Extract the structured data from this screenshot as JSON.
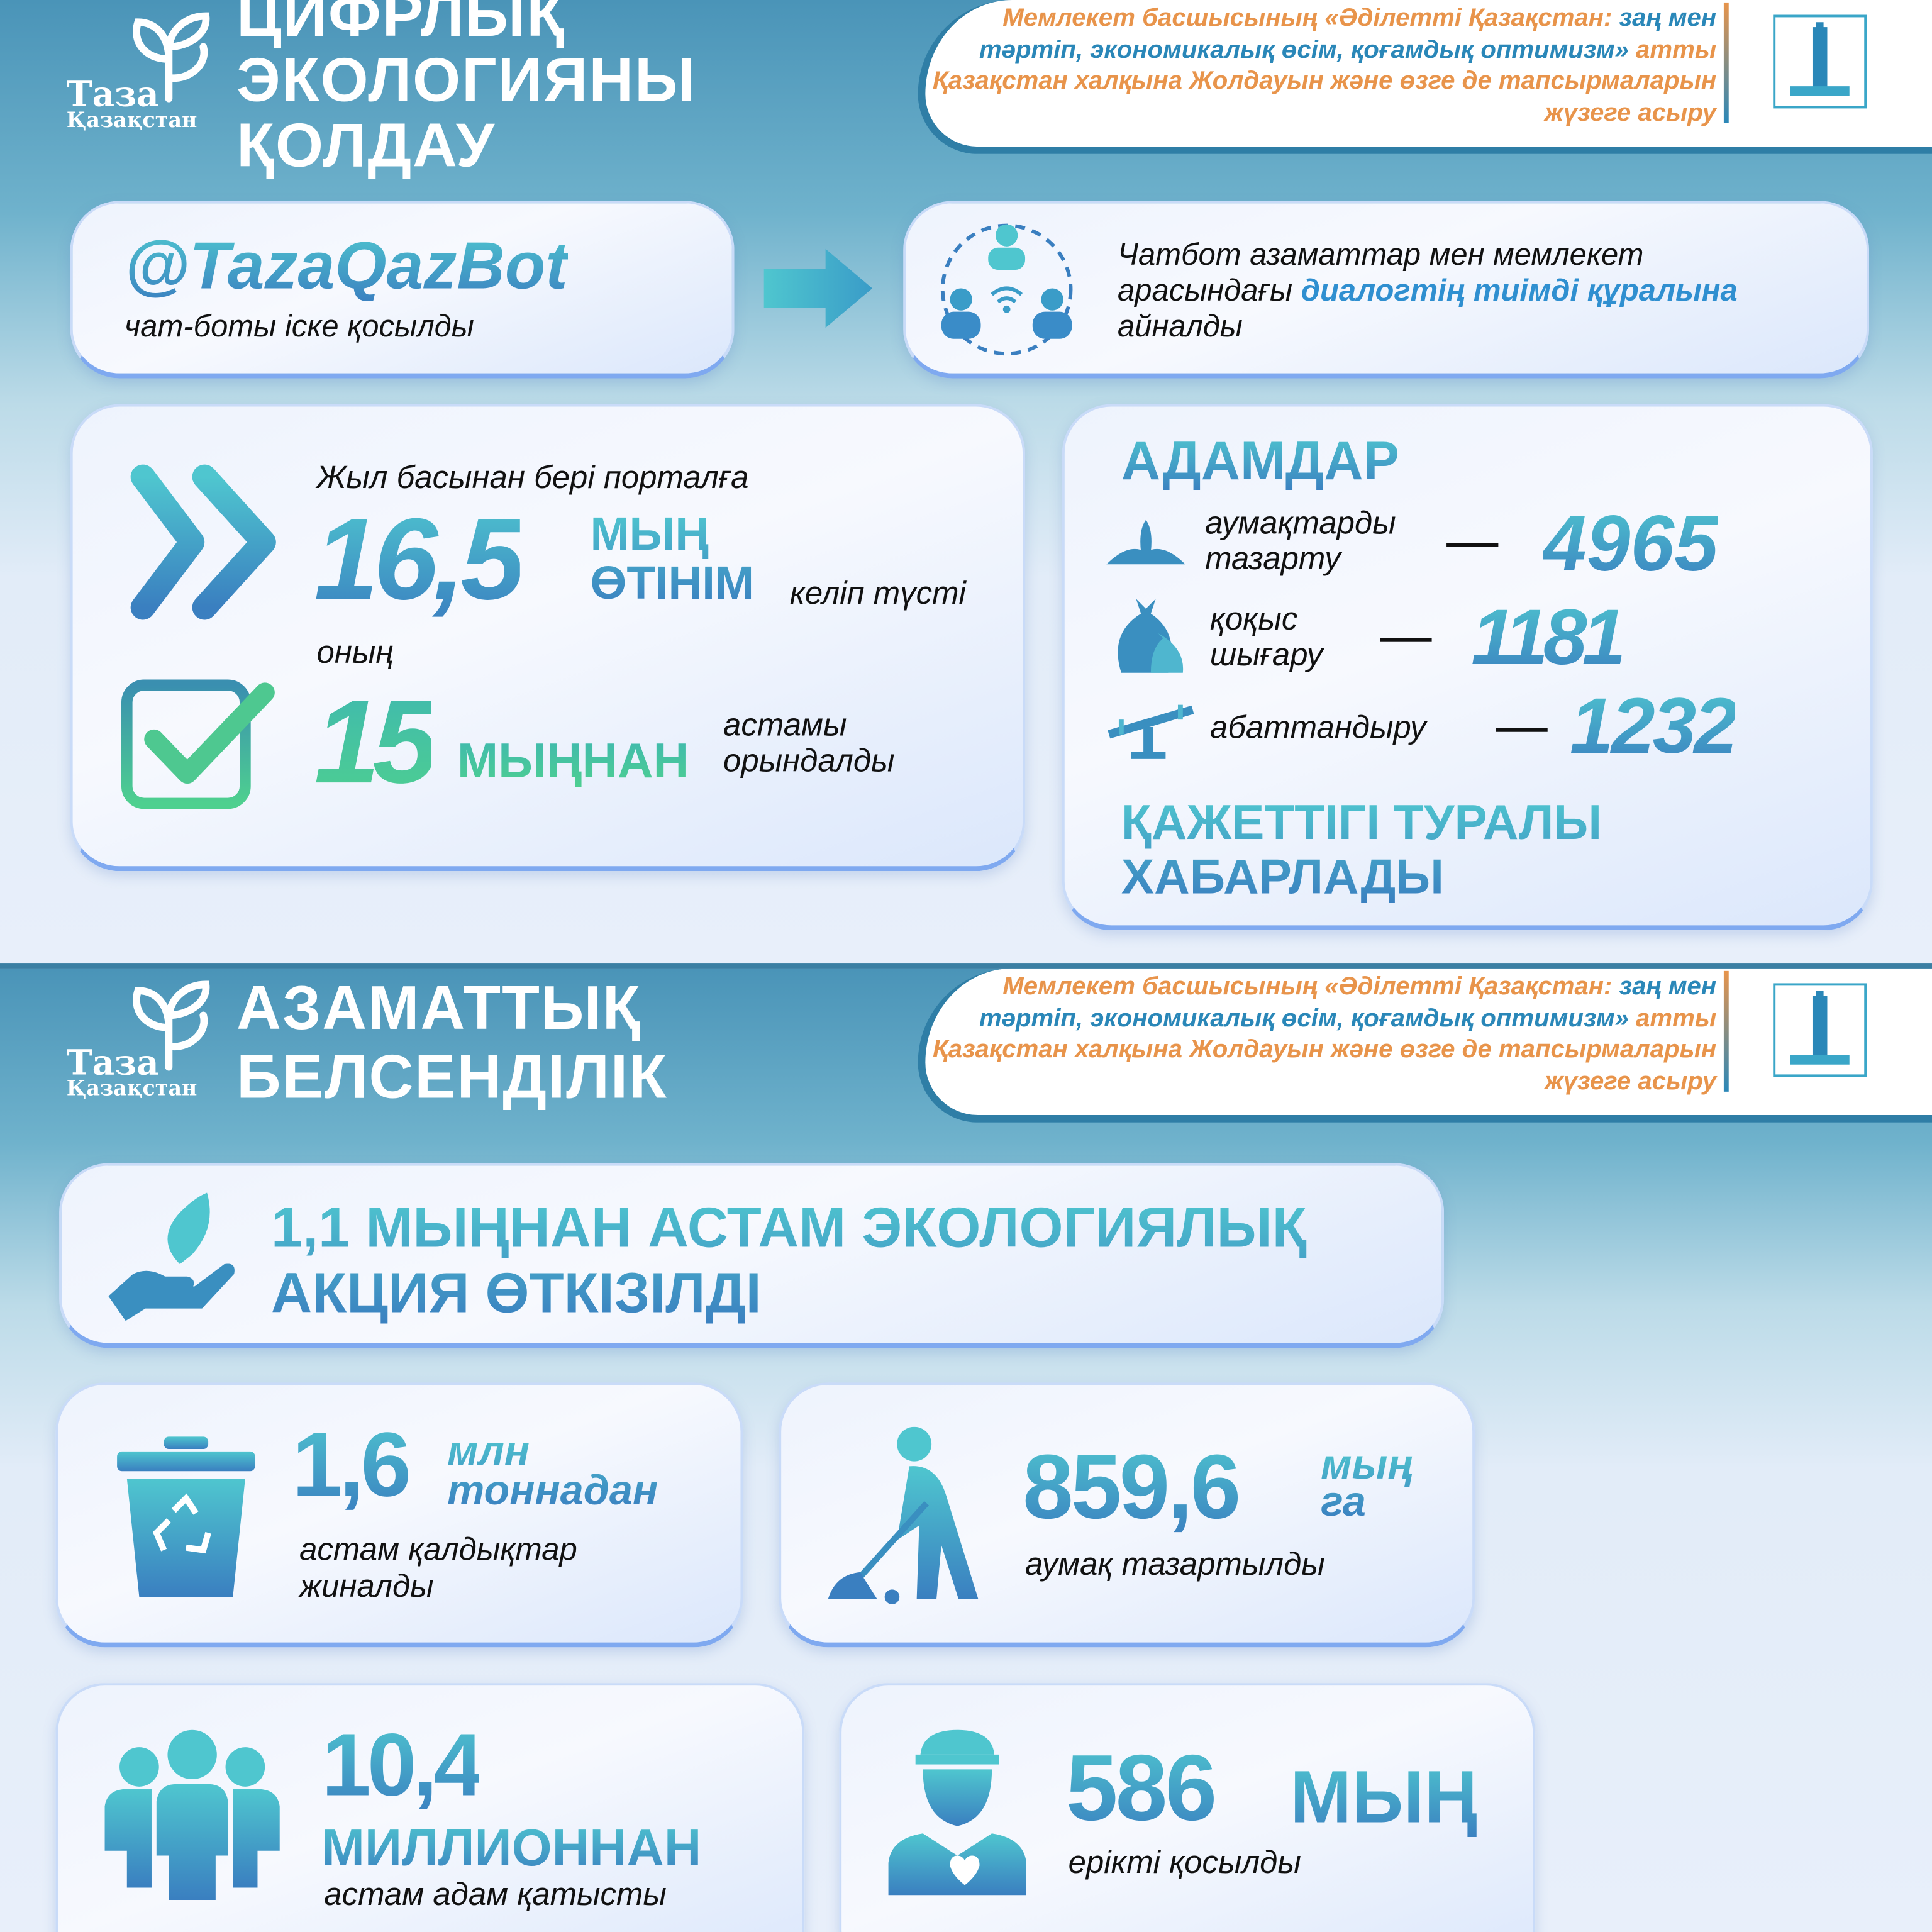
{
  "colors": {
    "accent_teal": "#4fc6cf",
    "accent_blue": "#3a7fc0",
    "orange": "#e8944b",
    "green": "#4ed08f",
    "header_bg": "#4a94b8"
  },
  "logo": {
    "line1": "Таза",
    "line2": "Қазақстан"
  },
  "banner": {
    "part1": "Мемлекет басшысының «Әділетті Қазақстан:",
    "part2": "заң мен тәртіп, экономикалық өсім, қоғамдық оптимизм»",
    "part3": "атты Қазақстан халқына Жолдауын және өзге де тапсырмаларын жүзеге асыру"
  },
  "section1": {
    "title_lines": [
      "ЦИФРЛЫҚ",
      "ЭКОЛОГИЯНЫ",
      "ҚОЛДАУ"
    ],
    "bot": {
      "handle": "@TazaQazBot",
      "caption": "чат-боты іске қосылды"
    },
    "chatbot": {
      "text1": "Чатбот азаматтар мен мемлекет арасындағы ",
      "highlight": "диалогтің тиімді құралына",
      "text2": " айналды"
    },
    "portal": {
      "intro": "Жыл басынан бері порталға",
      "number": "16,5",
      "unit1": "МЫҢ",
      "unit2": "ӨТІНІМ",
      "suffix": "келіп түсті",
      "of_which": "оның",
      "done_number": "15",
      "done_unit": "МЫҢНАН",
      "done_text1": "астамы",
      "done_text2": "орындалды"
    },
    "people": {
      "heading": "АДАМДАР",
      "items": [
        {
          "icon": "broom-cleaning-icon",
          "label1": "аумақтарды",
          "label2": "тазарту",
          "value": "4965"
        },
        {
          "icon": "garbage-bags-icon",
          "label1": "қоқыс",
          "label2": "шығару",
          "value": "1181"
        },
        {
          "icon": "seesaw-icon",
          "label1": "абаттандыру",
          "label2": "",
          "value": "1232"
        }
      ],
      "footer1": "ҚАЖЕТТІГІ ТУРАЛЫ",
      "footer2": "ХАБАРЛАДЫ"
    }
  },
  "section2": {
    "title_lines": [
      "АЗАМАТТЫҚ",
      "БЕЛСЕНДІЛІК"
    ],
    "actions": {
      "line1": "1,1 МЫҢНАН АСТАМ ЭКОЛОГИЯЛЫҚ",
      "line2": "АКЦИЯ ӨТКІЗІЛДІ"
    },
    "waste": {
      "number": "1,6",
      "unit1": "млн",
      "unit2": "тоннадан",
      "text1": "астам қалдықтар",
      "text2": "жиналды"
    },
    "area": {
      "number": "859,6",
      "unit1": "мың",
      "unit2": "га",
      "text": "аумақ тазартылды"
    },
    "participants": {
      "number": "10,4",
      "unit": "МИЛЛИОННАН",
      "text": "астам адам қатысты"
    },
    "volunteers": {
      "number": "586",
      "unit": "МЫҢ",
      "text": "ерікті қосылды"
    }
  }
}
